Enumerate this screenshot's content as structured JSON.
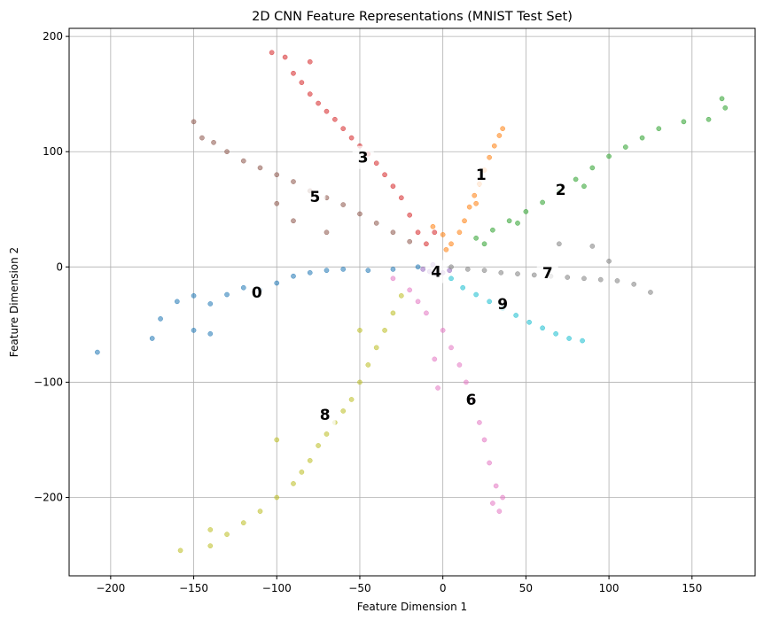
{
  "chart_data": {
    "type": "scatter",
    "title": "2D CNN Feature Representations (MNIST Test Set)",
    "xlabel": "Feature Dimension 1",
    "ylabel": "Feature Dimension 2",
    "xlim": [
      -225,
      188
    ],
    "ylim": [
      -268,
      207
    ],
    "xticks": [
      -200,
      -150,
      -100,
      -50,
      0,
      50,
      100,
      150
    ],
    "yticks": [
      -200,
      -100,
      0,
      100,
      200
    ],
    "xtick_labels": [
      "−200",
      "−150",
      "−100",
      "−50",
      "0",
      "50",
      "100",
      "150"
    ],
    "ytick_labels": [
      "−200",
      "−100",
      "0",
      "100",
      "200"
    ],
    "grid": true,
    "series": [
      {
        "label": "0",
        "color": "#1f77b4",
        "center": [
          -112,
          -22
        ],
        "points": [
          [
            -208,
            -74
          ],
          [
            -175,
            -62
          ],
          [
            -170,
            -45
          ],
          [
            -160,
            -30
          ],
          [
            -150,
            -25
          ],
          [
            -140,
            -32
          ],
          [
            -130,
            -24
          ],
          [
            -120,
            -18
          ],
          [
            -110,
            -20
          ],
          [
            -100,
            -14
          ],
          [
            -90,
            -8
          ],
          [
            -80,
            -5
          ],
          [
            -70,
            -3
          ],
          [
            -60,
            -2
          ],
          [
            -45,
            -3
          ],
          [
            -30,
            -2
          ],
          [
            -15,
            0
          ],
          [
            -150,
            -55
          ],
          [
            -140,
            -58
          ]
        ]
      },
      {
        "label": "1",
        "color": "#ff7f0e",
        "center": [
          23,
          80
        ],
        "points": [
          [
            10,
            30
          ],
          [
            13,
            40
          ],
          [
            16,
            52
          ],
          [
            19,
            62
          ],
          [
            22,
            72
          ],
          [
            25,
            84
          ],
          [
            28,
            95
          ],
          [
            31,
            105
          ],
          [
            34,
            114
          ],
          [
            36,
            120
          ],
          [
            5,
            20
          ],
          [
            0,
            28
          ],
          [
            -6,
            35
          ],
          [
            2,
            15
          ],
          [
            20,
            55
          ]
        ]
      },
      {
        "label": "2",
        "color": "#2ca02c",
        "center": [
          71,
          67
        ],
        "points": [
          [
            20,
            25
          ],
          [
            30,
            32
          ],
          [
            40,
            40
          ],
          [
            50,
            48
          ],
          [
            60,
            56
          ],
          [
            70,
            66
          ],
          [
            80,
            76
          ],
          [
            90,
            86
          ],
          [
            100,
            96
          ],
          [
            110,
            104
          ],
          [
            120,
            112
          ],
          [
            130,
            120
          ],
          [
            145,
            126
          ],
          [
            160,
            128
          ],
          [
            170,
            138
          ],
          [
            168,
            146
          ],
          [
            25,
            20
          ],
          [
            45,
            38
          ],
          [
            85,
            70
          ]
        ]
      },
      {
        "label": "3",
        "color": "#d62728",
        "center": [
          -48,
          95
        ],
        "points": [
          [
            -95,
            182
          ],
          [
            -90,
            168
          ],
          [
            -85,
            160
          ],
          [
            -80,
            150
          ],
          [
            -75,
            142
          ],
          [
            -70,
            135
          ],
          [
            -65,
            128
          ],
          [
            -60,
            120
          ],
          [
            -55,
            112
          ],
          [
            -50,
            105
          ],
          [
            -45,
            98
          ],
          [
            -40,
            90
          ],
          [
            -35,
            80
          ],
          [
            -30,
            70
          ],
          [
            -25,
            60
          ],
          [
            -20,
            45
          ],
          [
            -15,
            30
          ],
          [
            -10,
            20
          ],
          [
            -5,
            30
          ],
          [
            -103,
            186
          ],
          [
            -80,
            178
          ]
        ]
      },
      {
        "label": "4",
        "color": "#9467bd",
        "center": [
          -4,
          -4
        ],
        "points": [
          [
            -12,
            -2
          ],
          [
            -8,
            -4
          ],
          [
            -4,
            -6
          ],
          [
            0,
            -5
          ],
          [
            4,
            -3
          ],
          [
            -6,
            2
          ]
        ]
      },
      {
        "label": "5",
        "color": "#8c564b",
        "center": [
          -77,
          61
        ],
        "points": [
          [
            -150,
            126
          ],
          [
            -145,
            112
          ],
          [
            -138,
            108
          ],
          [
            -130,
            100
          ],
          [
            -120,
            92
          ],
          [
            -110,
            86
          ],
          [
            -100,
            80
          ],
          [
            -90,
            74
          ],
          [
            -80,
            66
          ],
          [
            -70,
            60
          ],
          [
            -60,
            54
          ],
          [
            -50,
            46
          ],
          [
            -40,
            38
          ],
          [
            -30,
            30
          ],
          [
            -20,
            22
          ],
          [
            -90,
            40
          ],
          [
            -70,
            30
          ],
          [
            -100,
            55
          ]
        ]
      },
      {
        "label": "6",
        "color": "#e377c2",
        "center": [
          17,
          -115
        ],
        "points": [
          [
            -20,
            -20
          ],
          [
            -10,
            -40
          ],
          [
            0,
            -55
          ],
          [
            5,
            -70
          ],
          [
            10,
            -85
          ],
          [
            14,
            -100
          ],
          [
            18,
            -115
          ],
          [
            22,
            -135
          ],
          [
            25,
            -150
          ],
          [
            28,
            -170
          ],
          [
            32,
            -190
          ],
          [
            36,
            -200
          ],
          [
            34,
            -212
          ],
          [
            30,
            -205
          ],
          [
            -30,
            -10
          ],
          [
            -15,
            -30
          ],
          [
            -5,
            -80
          ],
          [
            -3,
            -105
          ]
        ]
      },
      {
        "label": "7",
        "color": "#7f7f7f",
        "center": [
          63,
          -5
        ],
        "points": [
          [
            5,
            0
          ],
          [
            15,
            -2
          ],
          [
            25,
            -3
          ],
          [
            35,
            -5
          ],
          [
            45,
            -6
          ],
          [
            55,
            -7
          ],
          [
            65,
            -8
          ],
          [
            75,
            -9
          ],
          [
            85,
            -10
          ],
          [
            95,
            -11
          ],
          [
            105,
            -12
          ],
          [
            115,
            -15
          ],
          [
            125,
            -22
          ],
          [
            100,
            5
          ],
          [
            70,
            20
          ],
          [
            90,
            18
          ]
        ]
      },
      {
        "label": "9",
        "color": "#17becf",
        "center": [
          36,
          -32
        ],
        "points": [
          [
            5,
            -10
          ],
          [
            12,
            -18
          ],
          [
            20,
            -24
          ],
          [
            28,
            -30
          ],
          [
            36,
            -36
          ],
          [
            44,
            -42
          ],
          [
            52,
            -48
          ],
          [
            60,
            -53
          ],
          [
            68,
            -58
          ],
          [
            76,
            -62
          ],
          [
            84,
            -64
          ]
        ]
      },
      {
        "label": "8",
        "color": "#bcbd22",
        "center": [
          -71,
          -128
        ],
        "points": [
          [
            -25,
            -25
          ],
          [
            -30,
            -40
          ],
          [
            -35,
            -55
          ],
          [
            -40,
            -70
          ],
          [
            -45,
            -85
          ],
          [
            -50,
            -100
          ],
          [
            -55,
            -115
          ],
          [
            -60,
            -125
          ],
          [
            -65,
            -135
          ],
          [
            -70,
            -145
          ],
          [
            -75,
            -155
          ],
          [
            -80,
            -168
          ],
          [
            -85,
            -178
          ],
          [
            -90,
            -188
          ],
          [
            -100,
            -200
          ],
          [
            -110,
            -212
          ],
          [
            -120,
            -222
          ],
          [
            -130,
            -232
          ],
          [
            -140,
            -242
          ],
          [
            -158,
            -246
          ],
          [
            -140,
            -228
          ],
          [
            -100,
            -150
          ],
          [
            -50,
            -55
          ]
        ]
      }
    ]
  }
}
